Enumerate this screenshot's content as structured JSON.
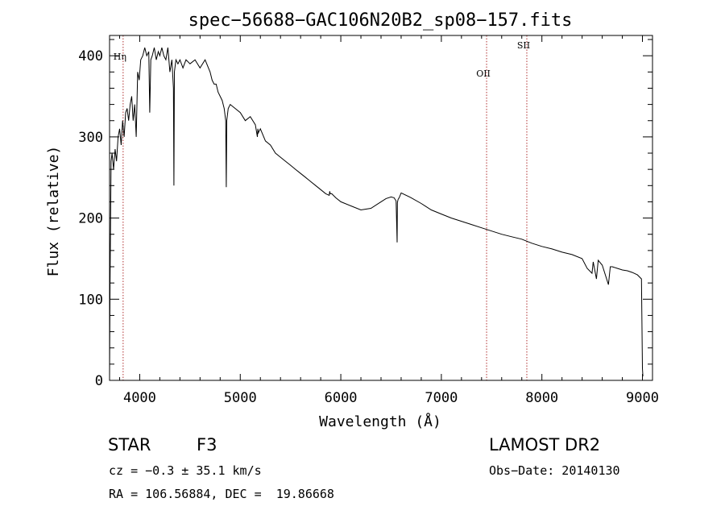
{
  "chart_data": {
    "type": "line",
    "title": "spec−56688−GAC106N20B2_sp08−157.fits",
    "xlabel": "Wavelength (Å)",
    "ylabel": "Flux (relative)",
    "xlim": [
      3700,
      9100
    ],
    "ylim": [
      0,
      425
    ],
    "xticks": [
      4000,
      5000,
      6000,
      7000,
      8000,
      9000
    ],
    "yticks": [
      0,
      100,
      200,
      300,
      400
    ],
    "grid": false,
    "series": [
      {
        "name": "spectrum",
        "x": [
          3700,
          3705,
          3715,
          3725,
          3740,
          3755,
          3770,
          3785,
          3800,
          3815,
          3830,
          3845,
          3860,
          3875,
          3890,
          3905,
          3920,
          3935,
          3950,
          3965,
          3980,
          3995,
          4010,
          4030,
          4050,
          4070,
          4090,
          4100,
          4110,
          4125,
          4145,
          4165,
          4185,
          4200,
          4220,
          4240,
          4260,
          4280,
          4300,
          4320,
          4335,
          4340,
          4345,
          4360,
          4380,
          4400,
          4430,
          4460,
          4500,
          4550,
          4600,
          4650,
          4700,
          4720,
          4740,
          4760,
          4780,
          4800,
          4820,
          4840,
          4855,
          4861,
          4866,
          4880,
          4900,
          4950,
          5000,
          5050,
          5100,
          5150,
          5170,
          5175,
          5180,
          5200,
          5250,
          5300,
          5350,
          5400,
          5450,
          5500,
          5550,
          5600,
          5650,
          5700,
          5750,
          5800,
          5850,
          5885,
          5890,
          5895,
          5910,
          5950,
          6000,
          6100,
          6200,
          6300,
          6400,
          6450,
          6500,
          6530,
          6550,
          6560,
          6563,
          6570,
          6580,
          6600,
          6700,
          6800,
          6900,
          7000,
          7100,
          7200,
          7300,
          7400,
          7500,
          7600,
          7700,
          7800,
          7900,
          8000,
          8100,
          8200,
          8300,
          8400,
          8450,
          8498,
          8510,
          8542,
          8560,
          8600,
          8662,
          8680,
          8700,
          8750,
          8800,
          8850,
          8900,
          8950,
          8990,
          9000,
          9005
        ],
        "values": [
          5,
          120,
          270,
          280,
          260,
          285,
          270,
          300,
          310,
          290,
          320,
          300,
          330,
          335,
          320,
          340,
          350,
          320,
          340,
          300,
          380,
          370,
          395,
          400,
          410,
          400,
          405,
          330,
          395,
          400,
          410,
          395,
          405,
          400,
          410,
          400,
          395,
          410,
          380,
          395,
          360,
          240,
          380,
          395,
          390,
          395,
          385,
          395,
          390,
          395,
          385,
          395,
          380,
          370,
          365,
          365,
          355,
          350,
          345,
          335,
          320,
          238,
          320,
          335,
          340,
          335,
          330,
          320,
          325,
          315,
          300,
          310,
          305,
          310,
          295,
          290,
          280,
          275,
          270,
          265,
          260,
          255,
          250,
          245,
          240,
          235,
          230,
          228,
          233,
          230,
          230,
          225,
          220,
          215,
          210,
          212,
          220,
          224,
          226,
          225,
          221,
          170,
          219,
          223,
          225,
          231,
          225,
          218,
          210,
          205,
          200,
          196,
          192,
          188,
          184,
          180,
          177,
          174,
          169,
          165,
          162,
          158,
          155,
          150,
          138,
          132,
          146,
          125,
          148,
          142,
          118,
          140,
          140,
          138,
          136,
          135,
          133,
          130,
          125,
          15,
          5
        ]
      }
    ],
    "vlines": [
      {
        "x": 3835,
        "label": "Hη"
      },
      {
        "x": 7450,
        "label": "OII"
      },
      {
        "x": 7850,
        "label": "SII"
      }
    ]
  },
  "info": {
    "object_class": "STAR",
    "subclass": "F3",
    "survey": "LAMOST DR2",
    "redshift_line": "cz = −0.3 ± 35.1 km/s",
    "obs_date_line": "Obs−Date: 20140130",
    "coords_line": "RA = 106.56884, DEC =  19.86668"
  }
}
